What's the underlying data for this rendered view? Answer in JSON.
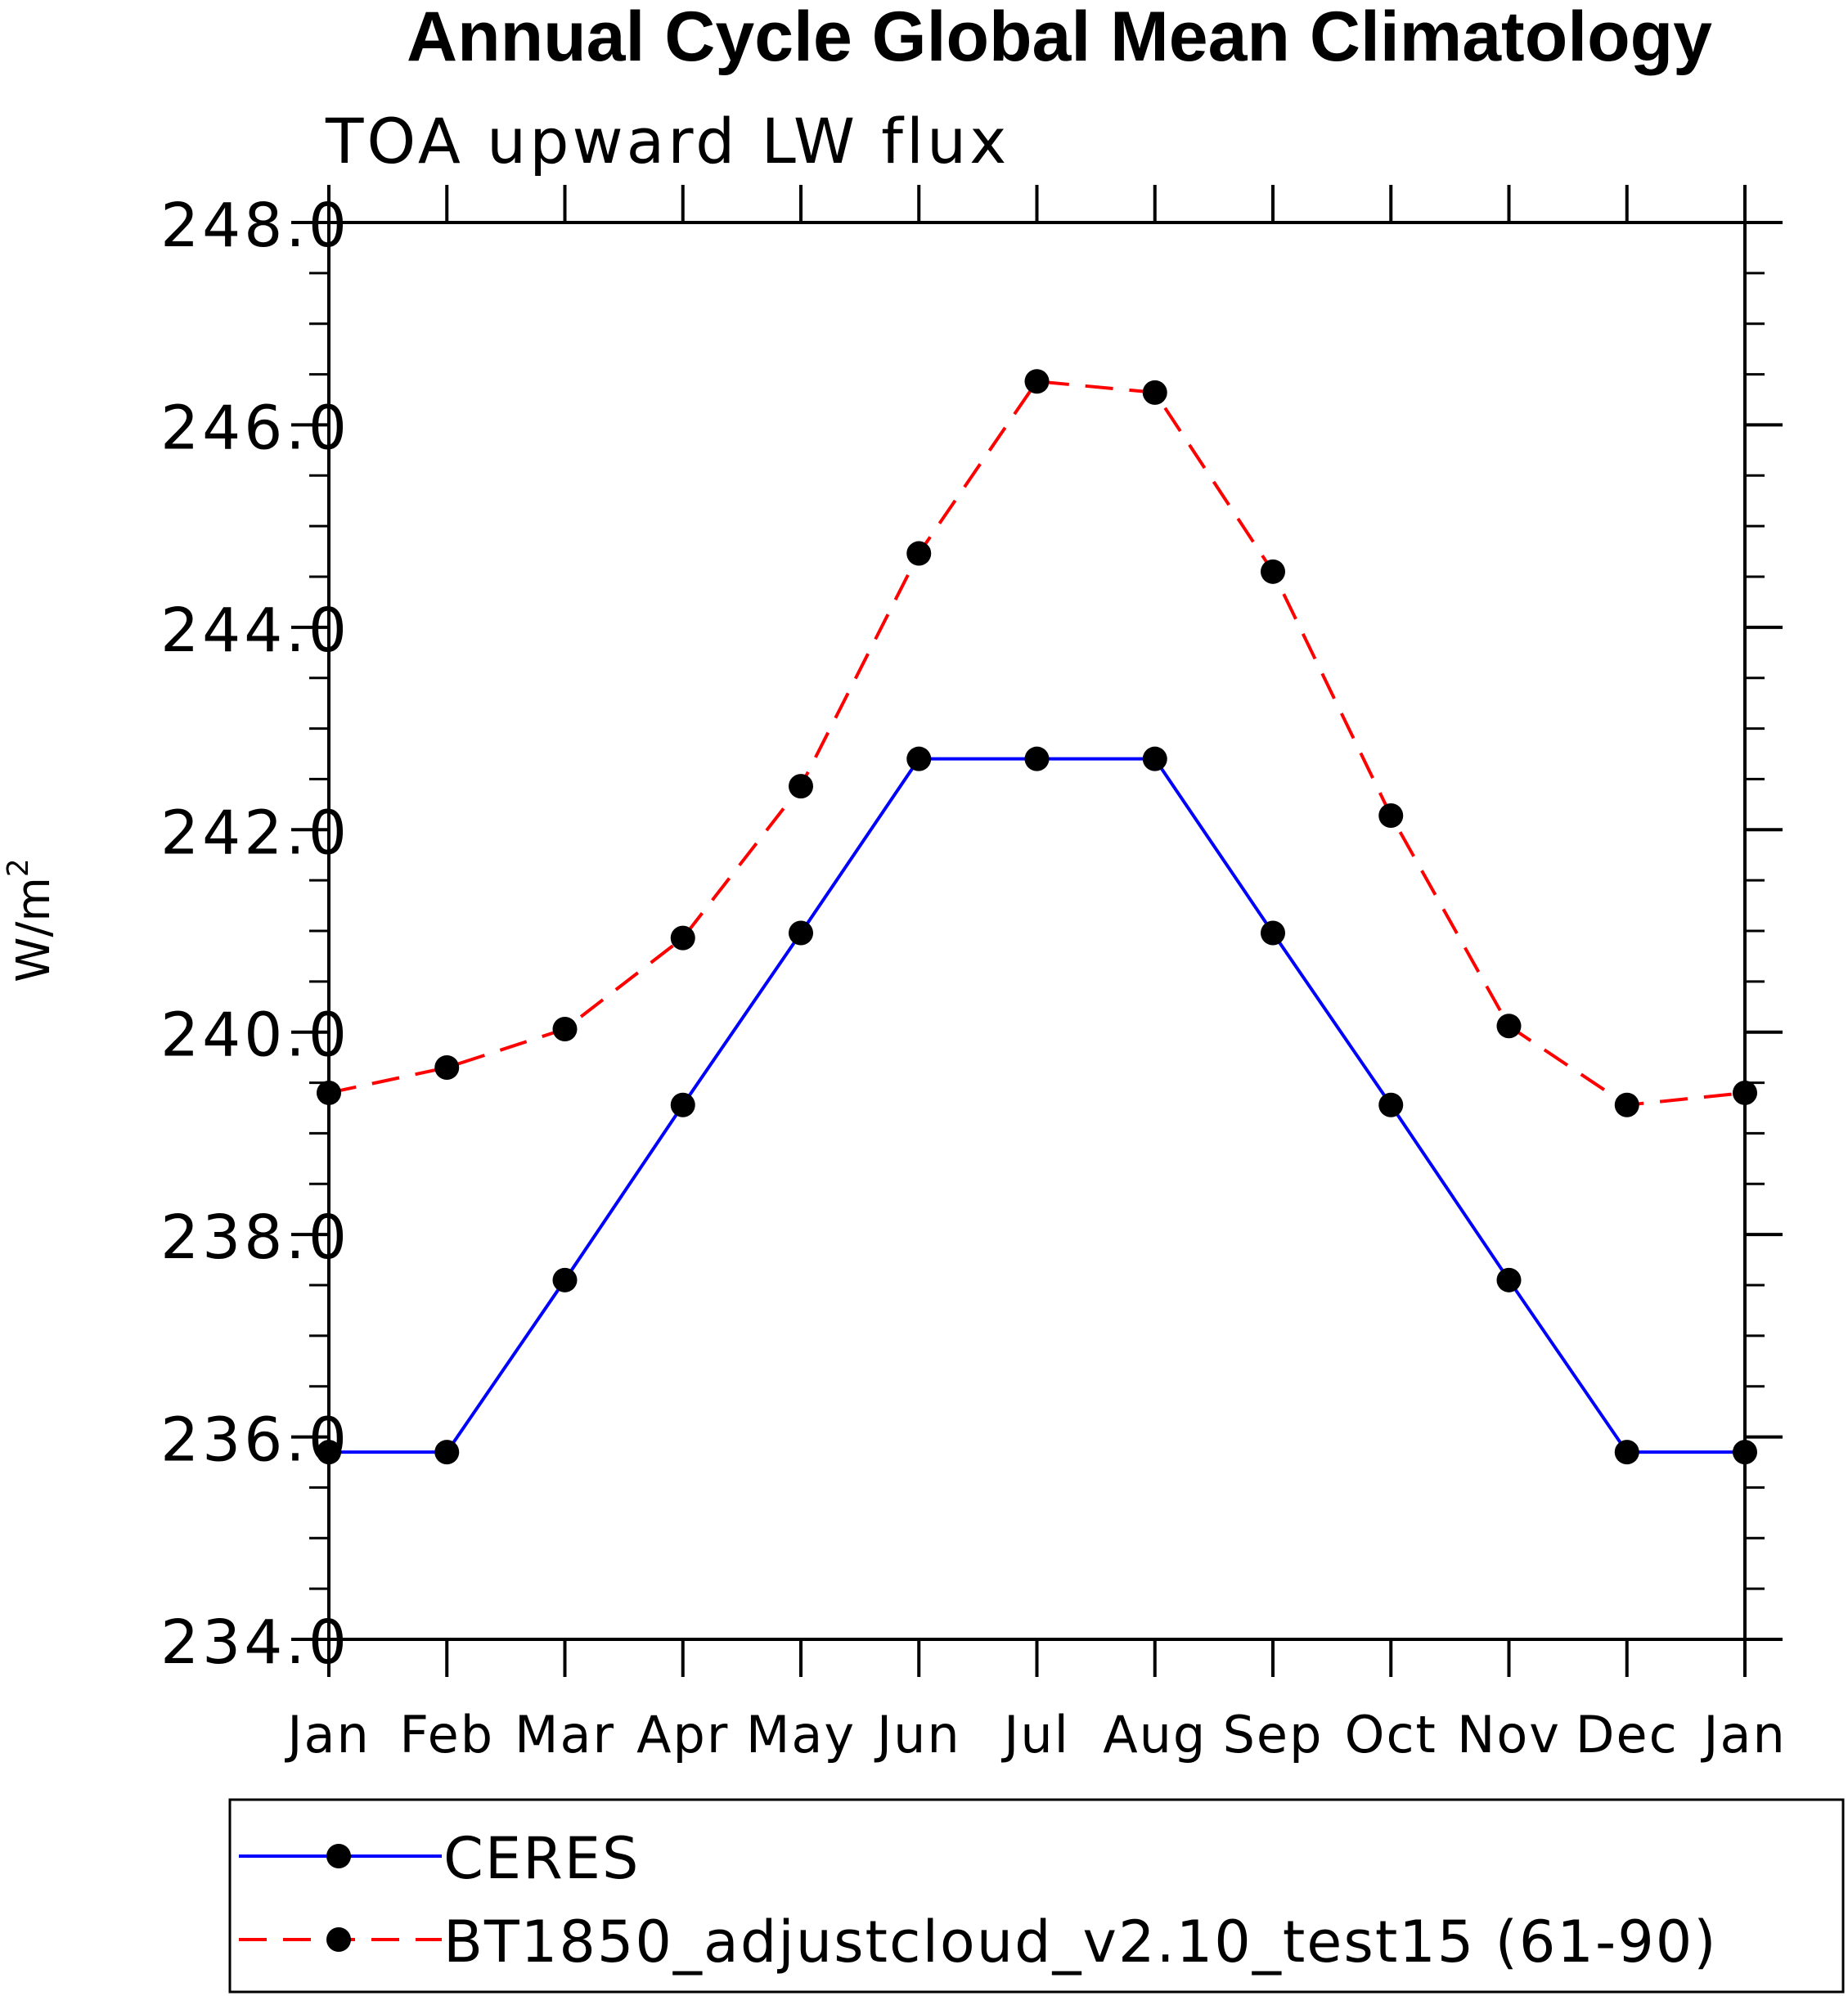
{
  "chart_data": {
    "type": "line",
    "title": "Annual Cycle Global Mean Climatology",
    "subtitle": "TOA upward LW flux",
    "ylabel": "W/m",
    "ylabel_superscript": "2",
    "xlabel": "",
    "categories": [
      "Jan",
      "Feb",
      "Mar",
      "Apr",
      "May",
      "Jun",
      "Jul",
      "Aug",
      "Sep",
      "Oct",
      "Nov",
      "Dec",
      "Jan"
    ],
    "ylim": [
      234.0,
      248.0
    ],
    "yticks": [
      "234.0",
      "236.0",
      "238.0",
      "240.0",
      "242.0",
      "244.0",
      "246.0",
      "248.0"
    ],
    "grid": false,
    "legend_position": "bottom",
    "series": [
      {
        "name": "CERES",
        "color": "#0000ff",
        "dash": "solid",
        "marker": "filled-circle",
        "values": [
          235.85,
          235.85,
          237.55,
          239.28,
          240.98,
          242.7,
          242.7,
          242.7,
          240.98,
          239.28,
          237.55,
          235.85,
          235.85
        ]
      },
      {
        "name": "BT1850_adjustcloud_v2.10_test15 (61-90)",
        "color": "#ff0000",
        "dash": "dashed",
        "marker": "filled-circle",
        "values": [
          239.4,
          239.65,
          240.03,
          240.93,
          242.43,
          244.73,
          246.43,
          246.32,
          244.55,
          242.14,
          240.06,
          239.28,
          239.4
        ]
      }
    ]
  }
}
